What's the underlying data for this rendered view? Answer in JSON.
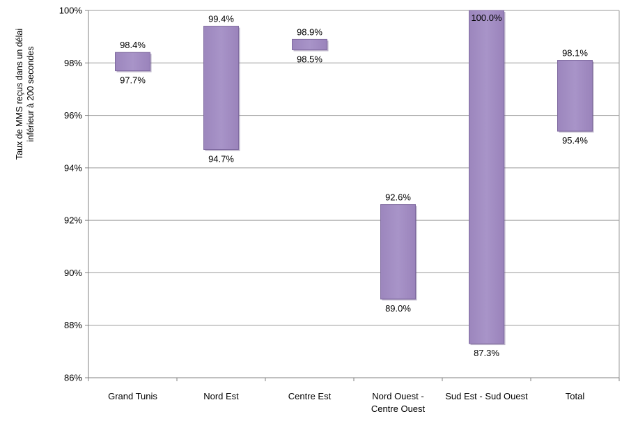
{
  "chart_data": {
    "type": "bar",
    "subtype": "floating-range",
    "ylabel_lines": [
      "Taux de MMS reçus dans un délai",
      "inférieur à 200 secondes"
    ],
    "ylim": [
      86,
      100
    ],
    "yticks": [
      86,
      88,
      90,
      92,
      94,
      96,
      98,
      100
    ],
    "ytick_labels": [
      "86%",
      "88%",
      "90%",
      "92%",
      "94%",
      "96%",
      "98%",
      "100%"
    ],
    "grid": true,
    "categories": [
      [
        "Grand Tunis"
      ],
      [
        "Nord Est"
      ],
      [
        "Centre Est"
      ],
      [
        "Nord Ouest -",
        "Centre Ouest"
      ],
      [
        "Sud Est - Sud Ouest"
      ],
      [
        "Total"
      ]
    ],
    "series": [
      {
        "high": 98.4,
        "low": 97.7,
        "high_label": "98.4%",
        "low_label": "97.7%"
      },
      {
        "high": 99.4,
        "low": 94.7,
        "high_label": "99.4%",
        "low_label": "94.7%"
      },
      {
        "high": 98.9,
        "low": 98.5,
        "high_label": "98.9%",
        "low_label": "98.5%"
      },
      {
        "high": 92.6,
        "low": 89.0,
        "high_label": "92.6%",
        "low_label": "89.0%"
      },
      {
        "high": 100.0,
        "low": 87.3,
        "high_label": "100.0%",
        "low_label": "87.3%"
      },
      {
        "high": 98.1,
        "low": 95.4,
        "high_label": "98.1%",
        "low_label": "95.4%"
      }
    ],
    "bar_color": "#a58fc4",
    "bar_shadow_color": "#6e5a8c",
    "grid_color": "#9a9a9a",
    "axis_color": "#808080"
  }
}
